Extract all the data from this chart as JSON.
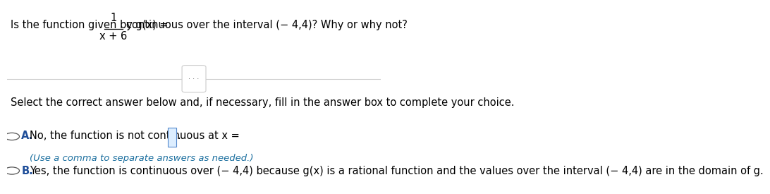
{
  "bg_color": "#ffffff",
  "text_color": "#000000",
  "blue_color": "#1f4e99",
  "line_color": "#cccccc",
  "divider_dots": "· · ·",
  "instruction": "Select the correct answer below and, if necessary, fill in the answer box to complete your choice.",
  "option_a_label": "A.",
  "option_a_sub": "(Use a comma to separate answers as needed.)",
  "option_b_label": "B.",
  "option_b_text": "Yes, the function is continuous over (− 4,4) because g(x) is a rational function and the values over the interval (− 4,4) are in the domain of g.",
  "font_size_question": 10.5,
  "font_size_body": 10.5,
  "font_size_small": 9.5
}
